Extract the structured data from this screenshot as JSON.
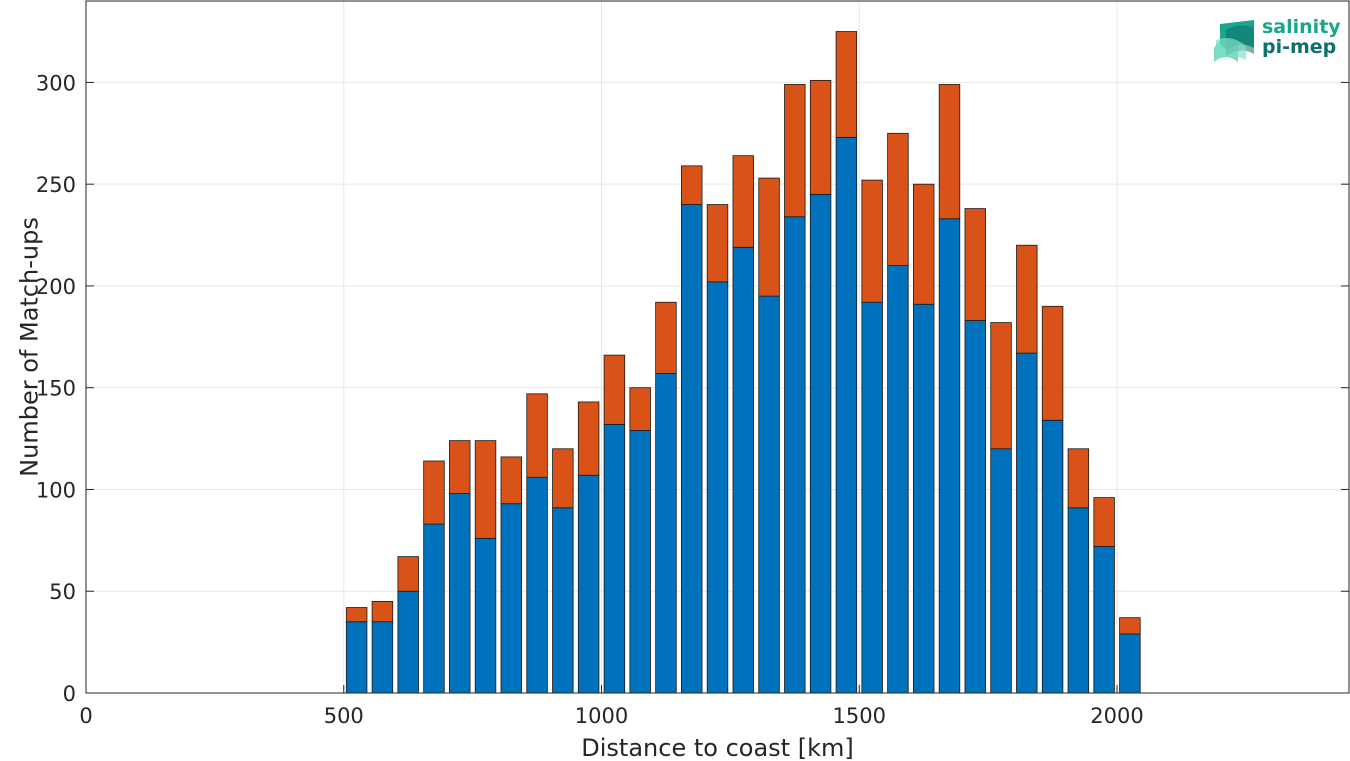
{
  "logo": {
    "line1": "salinity",
    "line2": "pi-mep",
    "colors": [
      "#1fb89a",
      "#5fd3b6",
      "#0f6f6a"
    ]
  },
  "chart_data": {
    "type": "bar",
    "stacked": true,
    "xlabel": "Distance to coast [km]",
    "ylabel": "Number of Match-ups",
    "xlim": [
      0,
      2450
    ],
    "ylim": [
      0,
      340
    ],
    "xticks": [
      0,
      500,
      1000,
      1500,
      2000
    ],
    "yticks": [
      0,
      50,
      100,
      150,
      200,
      250,
      300
    ],
    "grid": true,
    "bar_width": 40,
    "x": [
      525,
      575,
      625,
      675,
      725,
      775,
      825,
      875,
      925,
      975,
      1025,
      1075,
      1125,
      1175,
      1225,
      1275,
      1325,
      1375,
      1425,
      1475,
      1525,
      1575,
      1625,
      1675,
      1725,
      1775,
      1825,
      1875,
      1925,
      1975,
      2025
    ],
    "series": [
      {
        "color": "#0072bd",
        "values": [
          35,
          35,
          50,
          83,
          98,
          76,
          93,
          106,
          91,
          107,
          132,
          129,
          157,
          240,
          202,
          219,
          195,
          234,
          245,
          273,
          192,
          210,
          191,
          233,
          183,
          120,
          167,
          134,
          91,
          72,
          29
        ]
      },
      {
        "color": "#d95319",
        "values": [
          7,
          10,
          17,
          31,
          26,
          48,
          23,
          41,
          29,
          36,
          34,
          21,
          35,
          19,
          38,
          45,
          58,
          65,
          56,
          52,
          60,
          65,
          59,
          66,
          55,
          62,
          53,
          56,
          29,
          24,
          8
        ]
      }
    ]
  }
}
